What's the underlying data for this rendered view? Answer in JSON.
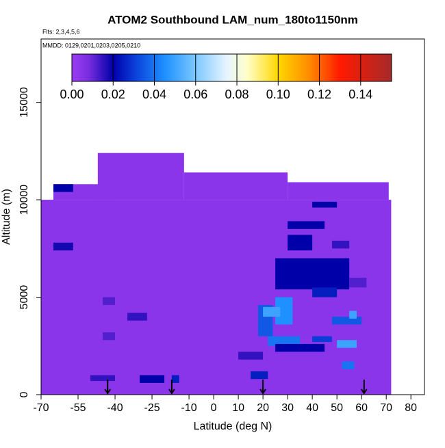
{
  "chart_data": {
    "type": "heatmap",
    "title": "ATOM2 Southbound LAM_num_180to1150nm",
    "subtitle": "Flts: 2,3,4,5,6",
    "annotation": "MMDD: 0129,0201,0203,0205,0210",
    "x_label": "Latitude (deg N)",
    "y_label": "Altitude (m)",
    "xlim": [
      -70,
      85.5
    ],
    "ylim": [
      0,
      18250
    ],
    "xticks": [
      -70,
      -55,
      -40,
      -25,
      -10,
      0,
      10,
      20,
      30,
      40,
      50,
      60,
      70,
      80
    ],
    "yticks": [
      0,
      5000,
      10000,
      15000
    ],
    "colorbar_lim": [
      0,
      0.155
    ],
    "colorbar_ticks": [
      {
        "value": 0,
        "label": "0.00"
      },
      {
        "value": 0.02,
        "label": "0.02"
      },
      {
        "value": 0.04,
        "label": "0.04"
      },
      {
        "value": 0.06,
        "label": "0.06"
      },
      {
        "value": 0.08,
        "label": "0.08"
      },
      {
        "value": 0.1,
        "label": "0.10"
      },
      {
        "value": 0.12,
        "label": "0.12"
      },
      {
        "value": 0.14,
        "label": "0.14"
      }
    ],
    "colorscale": [
      [
        0,
        "#9b3cf5"
      ],
      [
        0.008,
        "#7a2ee0"
      ],
      [
        0.02,
        "#0000a8"
      ],
      [
        0.03,
        "#0a3cd8"
      ],
      [
        0.045,
        "#1e90ff"
      ],
      [
        0.06,
        "#7cc8ff"
      ],
      [
        0.075,
        "#e6f4ff"
      ],
      [
        0.085,
        "#ffffc8"
      ],
      [
        0.1,
        "#ffd700"
      ],
      [
        0.115,
        "#ff8c00"
      ],
      [
        0.13,
        "#ff1a00"
      ],
      [
        0.155,
        "#a52a2a"
      ]
    ],
    "cells": [
      [
        -70,
        72,
        0,
        10000,
        0.004
      ],
      [
        -65,
        -40,
        10000,
        10800,
        0.004
      ],
      [
        -47,
        -12,
        10000,
        12400,
        0.004
      ],
      [
        -12,
        30,
        10000,
        11400,
        0.004
      ],
      [
        30,
        71,
        10000,
        10900,
        0.004
      ],
      [
        -65,
        -57,
        10400,
        10800,
        0.02
      ],
      [
        -65,
        -57,
        7400,
        7800,
        0.018
      ],
      [
        -50,
        -40,
        700,
        1000,
        0.015
      ],
      [
        -30,
        -20,
        600,
        1000,
        0.02
      ],
      [
        -17,
        -14,
        600,
        1000,
        0.025
      ],
      [
        -45,
        -40,
        4600,
        5000,
        0.012
      ],
      [
        -35,
        -27,
        3800,
        4200,
        0.015
      ],
      [
        -45,
        -40,
        2800,
        3200,
        0.012
      ],
      [
        30,
        40,
        7400,
        8200,
        0.02
      ],
      [
        25,
        55,
        5400,
        7000,
        0.02
      ],
      [
        40,
        50,
        5000,
        5500,
        0.025
      ],
      [
        25,
        32,
        3600,
        5000,
        0.045
      ],
      [
        18,
        24,
        3000,
        4600,
        0.035
      ],
      [
        22,
        35,
        2500,
        3000,
        0.04
      ],
      [
        20,
        27,
        4000,
        4500,
        0.05
      ],
      [
        25,
        45,
        2200,
        2600,
        0.02
      ],
      [
        50,
        58,
        2400,
        2800,
        0.05
      ],
      [
        52,
        57,
        1300,
        1700,
        0.04
      ],
      [
        48,
        60,
        3600,
        4000,
        0.035
      ],
      [
        55,
        58,
        3900,
        4300,
        0.05
      ],
      [
        40,
        48,
        2700,
        3000,
        0.03
      ],
      [
        15,
        22,
        800,
        1200,
        0.025
      ],
      [
        30,
        45,
        8500,
        8900,
        0.02
      ],
      [
        40,
        50,
        9600,
        9900,
        0.02
      ],
      [
        48,
        55,
        7500,
        7900,
        0.015
      ],
      [
        55,
        62,
        5500,
        6000,
        0.012
      ],
      [
        10,
        20,
        1800,
        2200,
        0.015
      ]
    ],
    "arrow_lats": [
      -43,
      -17,
      20,
      61
    ]
  }
}
